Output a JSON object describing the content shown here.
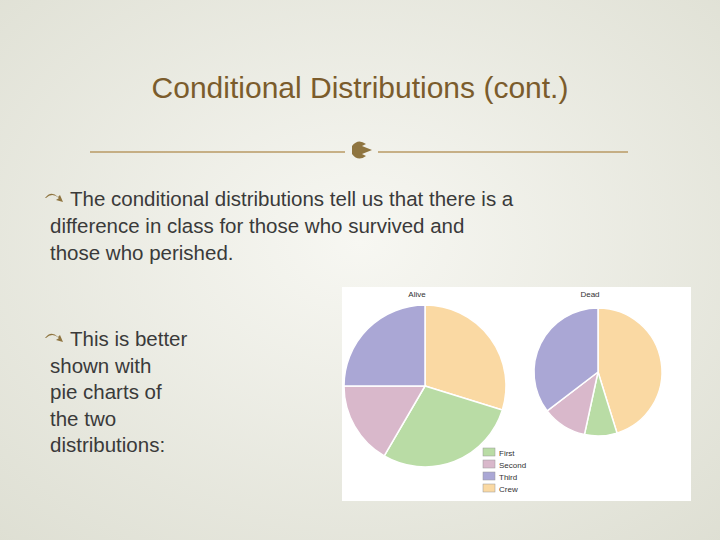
{
  "slide": {
    "title": "Conditional Distributions (cont.)",
    "bullets": [
      {
        "lines": [
          "The conditional distributions tell us that there is a",
          "difference in class for those who survived and",
          "those who perished."
        ]
      },
      {
        "lines": [
          "This is better",
          "shown with",
          "pie charts of",
          "the two",
          "distributions:"
        ]
      }
    ]
  },
  "chart_data": [
    {
      "type": "pie",
      "title": "Alive",
      "categories": [
        "First",
        "Second",
        "Third",
        "Crew"
      ],
      "values": [
        28.6,
        16.6,
        25.0,
        29.8
      ],
      "colors": [
        "#b9dca5",
        "#d9b8cb",
        "#aaa7d5",
        "#fad9a3"
      ],
      "legend": "bottom"
    },
    {
      "type": "pie",
      "title": "Dead",
      "categories": [
        "First",
        "Second",
        "Third",
        "Crew"
      ],
      "values": [
        8.2,
        11.2,
        35.4,
        45.2
      ],
      "colors": [
        "#b9dca5",
        "#d9b8cb",
        "#aaa7d5",
        "#fad9a3"
      ]
    }
  ]
}
